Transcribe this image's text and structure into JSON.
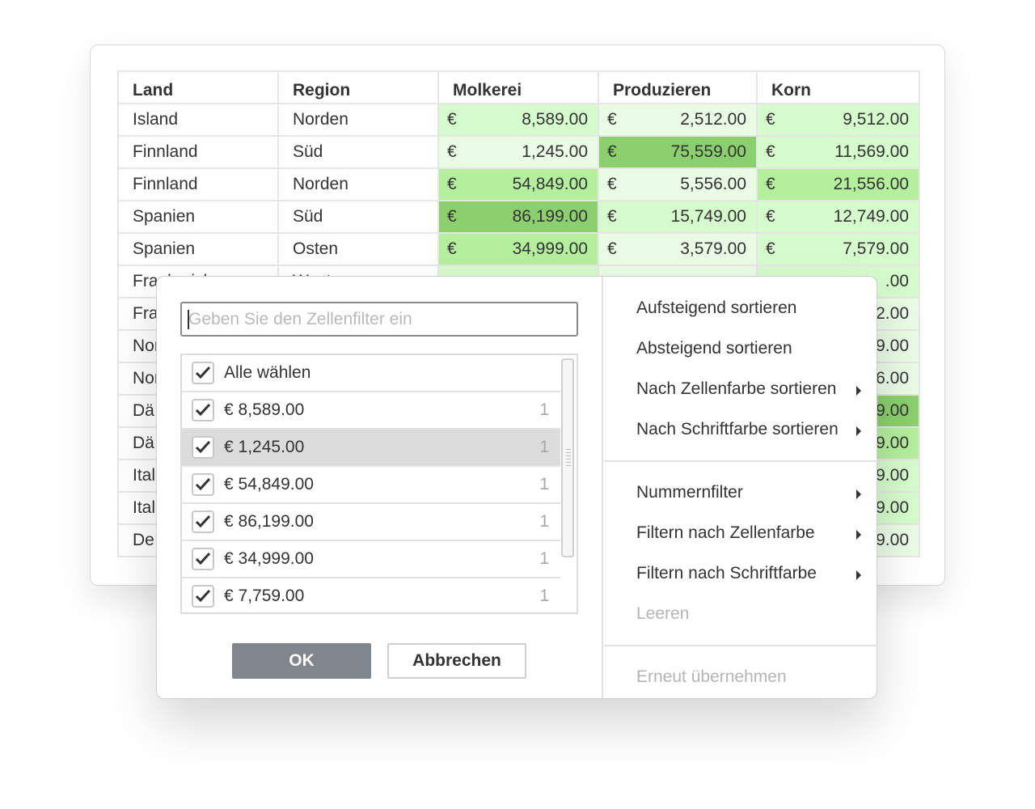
{
  "table": {
    "headers": [
      "Land",
      "Region",
      "Molkerei",
      "Produzieren",
      "Korn"
    ],
    "currency": "€",
    "rows": [
      {
        "land": "Island",
        "region": "Norden",
        "molkerei": "8,589.00",
        "produzieren": "2,512.00",
        "korn": "9,512.00"
      },
      {
        "land": "Finnland",
        "region": "Süd",
        "molkerei": "1,245.00",
        "produzieren": "75,559.00",
        "korn": "11,569.00"
      },
      {
        "land": "Finnland",
        "region": "Norden",
        "molkerei": "54,849.00",
        "produzieren": "5,556.00",
        "korn": "21,556.00"
      },
      {
        "land": "Spanien",
        "region": "Süd",
        "molkerei": "86,199.00",
        "produzieren": "15,749.00",
        "korn": "12,749.00"
      },
      {
        "land": "Spanien",
        "region": "Osten",
        "molkerei": "34,999.00",
        "produzieren": "3,579.00",
        "korn": "7,579.00"
      },
      {
        "land": "Frankreich",
        "region": "West",
        "molkerei": "",
        "produzieren": "",
        "korn": ".00"
      },
      {
        "land": "Fra",
        "region": "",
        "molkerei": "",
        "produzieren": "",
        "korn": "2.00"
      },
      {
        "land": "Nor",
        "region": "",
        "molkerei": "",
        "produzieren": "",
        "korn": "9.00"
      },
      {
        "land": "Nor",
        "region": "",
        "molkerei": "",
        "produzieren": "",
        "korn": "6.00"
      },
      {
        "land": "Dä",
        "region": "",
        "molkerei": "",
        "produzieren": "",
        "korn": "9.00"
      },
      {
        "land": "Dä",
        "region": "",
        "molkerei": "",
        "produzieren": "",
        "korn": "9.00"
      },
      {
        "land": "Ital",
        "region": "",
        "molkerei": "",
        "produzieren": "",
        "korn": "9.00"
      },
      {
        "land": "Ital",
        "region": "",
        "molkerei": "",
        "produzieren": "",
        "korn": "9.00"
      },
      {
        "land": "De",
        "region": "",
        "molkerei": "",
        "produzieren": "",
        "korn": "9.00"
      }
    ]
  },
  "filter_popup": {
    "search_placeholder": "Geben Sie den Zellenfilter ein",
    "select_all_label": "Alle wählen",
    "values": [
      {
        "label": "€ 8,589.00",
        "count": "1"
      },
      {
        "label": "€ 1,245.00",
        "count": "1"
      },
      {
        "label": "€ 54,849.00",
        "count": "1"
      },
      {
        "label": "€ 86,199.00",
        "count": "1"
      },
      {
        "label": "€ 34,999.00",
        "count": "1"
      },
      {
        "label": "€ 7,759.00",
        "count": "1"
      }
    ],
    "ok_label": "OK",
    "cancel_label": "Abbrechen"
  },
  "menu": {
    "sort_asc": "Aufsteigend sortieren",
    "sort_desc": "Absteigend sortieren",
    "sort_cell_color": "Nach Zellenfarbe sortieren",
    "sort_font_color": "Nach Schriftfarbe sortieren",
    "number_filter": "Nummernfilter",
    "filter_cell_color": "Filtern nach Zellenfarbe",
    "filter_font_color": "Filtern nach Schriftfarbe",
    "clear": "Leeren",
    "reapply": "Erneut übernehmen"
  }
}
